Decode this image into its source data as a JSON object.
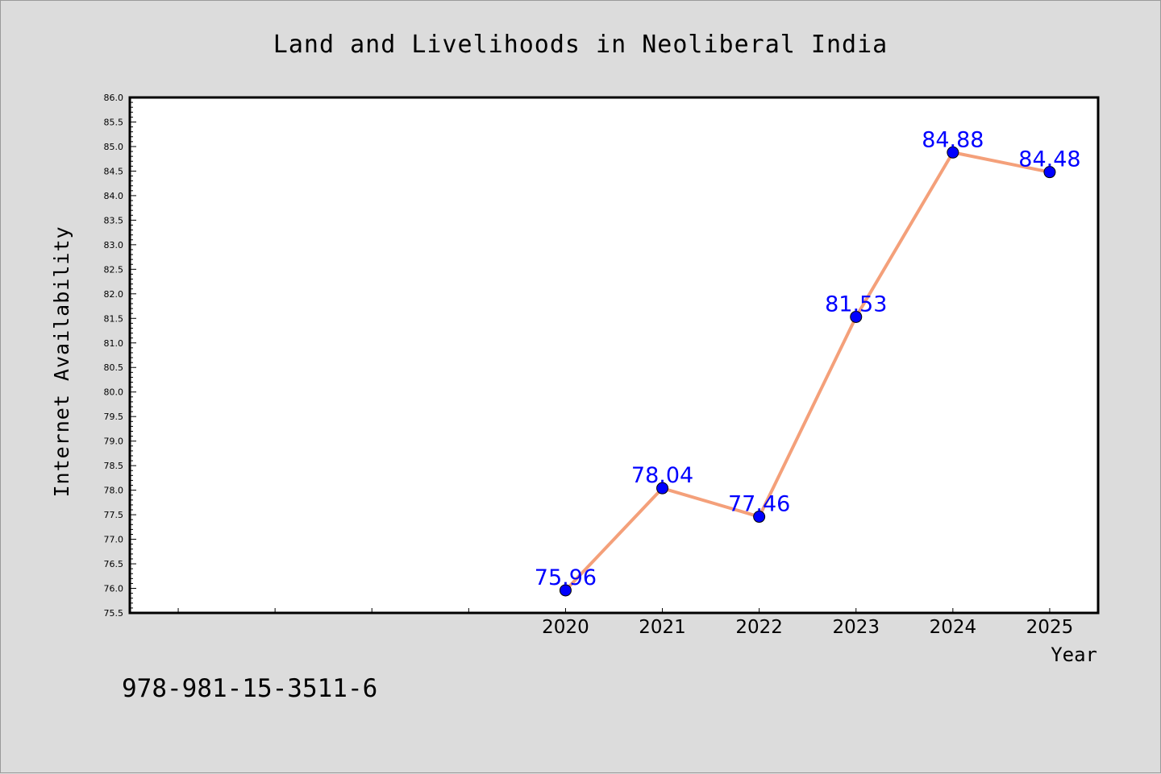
{
  "chart_data": {
    "type": "line",
    "title": "Land and Livelihoods in Neoliberal India",
    "xlabel": "Year",
    "ylabel": "Internet Availability",
    "x": [
      "2020",
      "2021",
      "2022",
      "2023",
      "2024",
      "2025"
    ],
    "series": [
      {
        "values": [
          75.96,
          78.04,
          77.46,
          81.53,
          84.88,
          84.48
        ]
      }
    ],
    "value_labels": [
      "75.96",
      "78.04",
      "77.46",
      "81.53",
      "84.88",
      "84.48"
    ],
    "ylim": [
      75.5,
      86.0
    ],
    "y_tick_step": 0.5,
    "y_ticks": [
      "75.5",
      "76.0",
      "76.5",
      "77.0",
      "77.5",
      "78.0",
      "78.5",
      "79.0",
      "79.5",
      "80.0",
      "80.5",
      "81.0",
      "81.5",
      "82.0",
      "82.5",
      "83.0",
      "83.5",
      "84.0",
      "84.5",
      "85.0",
      "85.5",
      "86.0"
    ],
    "x_slots": 10,
    "grid": false,
    "line_color": "#f4a07a",
    "marker_color": "#0000ff",
    "label_color": "#0000ff"
  },
  "footer": {
    "isbn": "978-981-15-3511-6"
  }
}
